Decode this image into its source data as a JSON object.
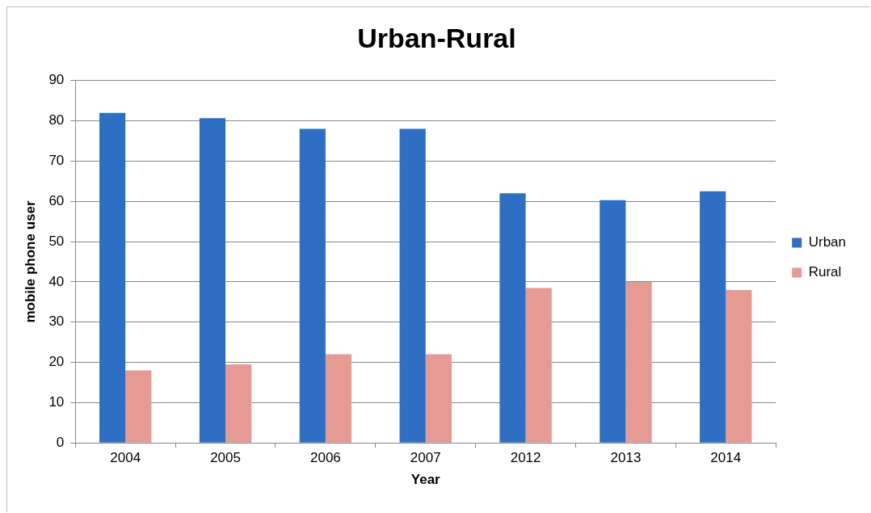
{
  "chart_data": {
    "type": "bar",
    "title": "Urban-Rural",
    "xlabel": "Year",
    "ylabel": "mobile phone user",
    "categories": [
      "2004",
      "2005",
      "2006",
      "2007",
      "2012",
      "2013",
      "2014"
    ],
    "series": [
      {
        "name": "Urban",
        "color": "#2e6fc4",
        "values": [
          82,
          80.7,
          78,
          78,
          62,
          60.3,
          62.5
        ]
      },
      {
        "name": "Rural",
        "color": "#e59a94",
        "values": [
          18,
          19.5,
          22,
          22,
          38.5,
          40,
          38
        ]
      }
    ],
    "ylim": [
      0,
      90
    ],
    "yticks": [
      0,
      10,
      20,
      30,
      40,
      50,
      60,
      70,
      80,
      90
    ],
    "grid": "y",
    "legend": "right"
  }
}
